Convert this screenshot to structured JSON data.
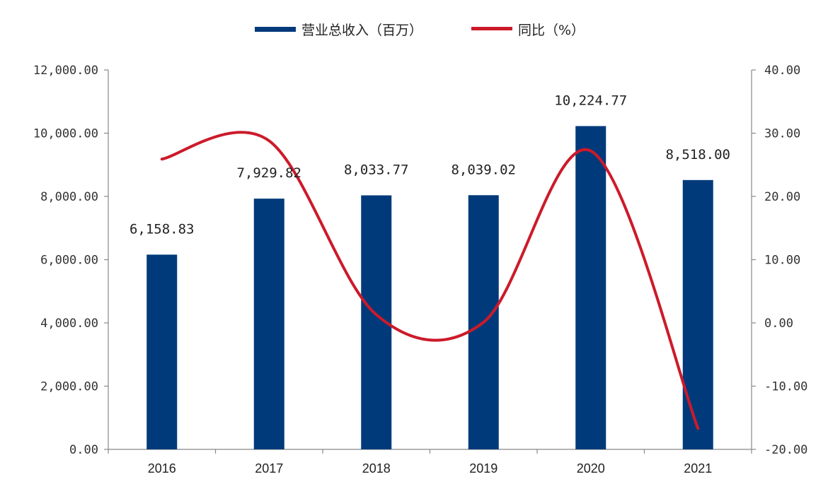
{
  "chart_data": {
    "type": "bar",
    "categories": [
      "2016",
      "2017",
      "2018",
      "2019",
      "2020",
      "2021"
    ],
    "series": [
      {
        "name": "营业总收入（百万）",
        "type": "bar",
        "axis": "left",
        "color": "#003a7a",
        "values": [
          6158.83,
          7929.82,
          8033.77,
          8039.02,
          10224.77,
          8518.0
        ],
        "labels": [
          "6,158.83",
          "7,929.82",
          "8,033.77",
          "8,039.02",
          "10,224.77",
          "8,518.00"
        ]
      },
      {
        "name": "同比（%）",
        "type": "line",
        "axis": "right",
        "color": "#cc1a2a",
        "values": [
          25.9,
          28.8,
          1.3,
          0.1,
          27.2,
          -16.7
        ]
      }
    ],
    "y_left": {
      "range": [
        0,
        12000
      ],
      "ticks": [
        0,
        2000,
        4000,
        6000,
        8000,
        10000,
        12000
      ],
      "tick_labels": [
        "0.00",
        "2,000.00",
        "4,000.00",
        "6,000.00",
        "8,000.00",
        "10,000.00",
        "12,000.00"
      ]
    },
    "y_right": {
      "range": [
        -20,
        40
      ],
      "ticks": [
        -20,
        -10,
        0,
        10,
        20,
        30,
        40
      ],
      "tick_labels": [
        "-20.00",
        "-10.00",
        "0.00",
        "10.00",
        "20.00",
        "30.00",
        "40.00"
      ]
    },
    "legend": {
      "position": "top-center"
    },
    "grid": false
  }
}
